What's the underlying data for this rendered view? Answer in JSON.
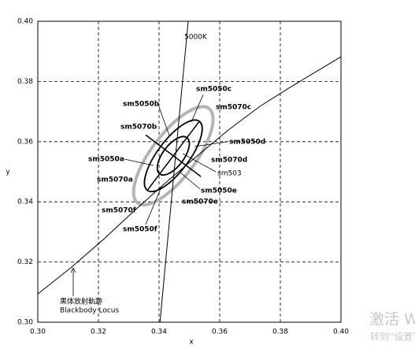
{
  "chart_data": {
    "type": "chromaticity",
    "xlabel": "x",
    "ylabel": "y",
    "xlim": [
      0.3,
      0.4
    ],
    "ylim": [
      0.3,
      0.4
    ],
    "xticks": [
      {
        "value": 0.3,
        "label": "0.30"
      },
      {
        "value": 0.32,
        "label": "0.32"
      },
      {
        "value": 0.34,
        "label": "0.34"
      },
      {
        "value": 0.36,
        "label": "0.36"
      },
      {
        "value": 0.38,
        "label": "0.38"
      },
      {
        "value": 0.4,
        "label": "0.40"
      }
    ],
    "yticks": [
      {
        "value": 0.3,
        "label": "0.30"
      },
      {
        "value": 0.32,
        "label": "0.32"
      },
      {
        "value": 0.34,
        "label": "0.34"
      },
      {
        "value": 0.36,
        "label": "0.36"
      },
      {
        "value": 0.38,
        "label": "0.38"
      },
      {
        "value": 0.4,
        "label": "0.40"
      }
    ],
    "grid": true,
    "series": [
      {
        "name": "Blackbody Locus",
        "color": "#000000",
        "x": [
          0.3,
          0.3109,
          0.3213,
          0.3317,
          0.3421,
          0.3525,
          0.3629,
          0.3732,
          0.3836,
          0.4
        ],
        "values": [
          0.3094,
          0.3181,
          0.3272,
          0.3369,
          0.3463,
          0.3552,
          0.3639,
          0.3717,
          0.3783,
          0.3882
        ]
      },
      {
        "name": "5000K",
        "color": "#000000",
        "x": [
          0.3403,
          0.3496
        ],
        "values": [
          0.3,
          0.4
        ]
      }
    ],
    "locus_label_cn": "黑体放射軌跡",
    "ellipses": [
      {
        "color": "#b4b4b4",
        "center": [
          0.3447,
          0.3553
        ],
        "a": 0.0196,
        "b": 0.0073,
        "angle": 53
      },
      {
        "color": "#000000",
        "center": [
          0.3447,
          0.3553
        ],
        "a": 0.0143,
        "b": 0.0052,
        "angle": 53
      },
      {
        "color": "#000000",
        "center": [
          0.3447,
          0.3553
        ],
        "a": 0.0075,
        "b": 0.0035,
        "angle": 53
      }
    ],
    "labels": [
      {
        "text": "sm5050c",
        "color": "#000000"
      },
      {
        "text": "sm5070c",
        "color": "#a0a0a0"
      },
      {
        "text": "sm5050b",
        "color": "#000000"
      },
      {
        "text": "sm5070b",
        "color": "#a0a0a0"
      },
      {
        "text": "sm5050d",
        "color": "#000000"
      },
      {
        "text": "sm5070d",
        "color": "#a0a0a0"
      },
      {
        "text": "sm5050a",
        "color": "#000000"
      },
      {
        "text": "sm503",
        "color": "#000000"
      },
      {
        "text": "sm5070a",
        "color": "#a0a0a0"
      },
      {
        "text": "sm5050e",
        "color": "#000000"
      },
      {
        "text": "sm5070e",
        "color": "#a0a0a0"
      },
      {
        "text": "sm5070f",
        "color": "#a0a0a0"
      },
      {
        "text": "sm5050f",
        "color": "#000000"
      }
    ]
  },
  "watermark": [
    "激活 W",
    "转到“设置”"
  ]
}
